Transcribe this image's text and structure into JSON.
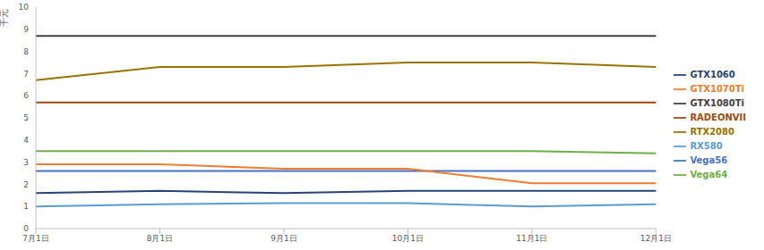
{
  "chart_data": {
    "type": "line",
    "y_label": "千元",
    "categories": [
      "7月1日",
      "8月1日",
      "9月1日",
      "10月1日",
      "11月1日",
      "12月1日"
    ],
    "series": [
      {
        "name": "RX580",
        "color": "#5b9bd5",
        "values": [
          1.0,
          1.1,
          1.15,
          1.15,
          1.0,
          1.1
        ]
      },
      {
        "name": "Vega56",
        "color": "#4472c4",
        "values": [
          2.6,
          2.6,
          2.6,
          2.6,
          2.6,
          2.6
        ]
      },
      {
        "name": "Vega64",
        "color": "#70ad47",
        "values": [
          3.5,
          3.5,
          3.5,
          3.5,
          3.5,
          3.4
        ]
      },
      {
        "name": "RADEONVII",
        "color": "#9e480e",
        "values": [
          5.7,
          5.7,
          5.7,
          5.7,
          5.7,
          5.7
        ]
      },
      {
        "name": "GTX1060",
        "color": "#264478",
        "values": [
          1.6,
          1.7,
          1.6,
          1.7,
          1.7,
          1.7
        ]
      },
      {
        "name": "GTX1070Ti",
        "color": "#ed7d31",
        "values": [
          2.9,
          2.9,
          2.7,
          2.7,
          2.05,
          2.05
        ]
      },
      {
        "name": "GTX1080Ti",
        "color": "#404040",
        "values": [
          8.7,
          8.7,
          8.7,
          8.7,
          8.7,
          8.7
        ]
      },
      {
        "name": "RTX2080",
        "color": "#997300",
        "values": [
          6.7,
          7.3,
          7.3,
          7.5,
          7.5,
          7.3
        ]
      }
    ],
    "ylim": [
      0,
      10
    ],
    "yticks": [
      0,
      1,
      2,
      3,
      4,
      5,
      6,
      7,
      8,
      9,
      10
    ],
    "grid": false,
    "legend": "right",
    "marker": "none"
  }
}
